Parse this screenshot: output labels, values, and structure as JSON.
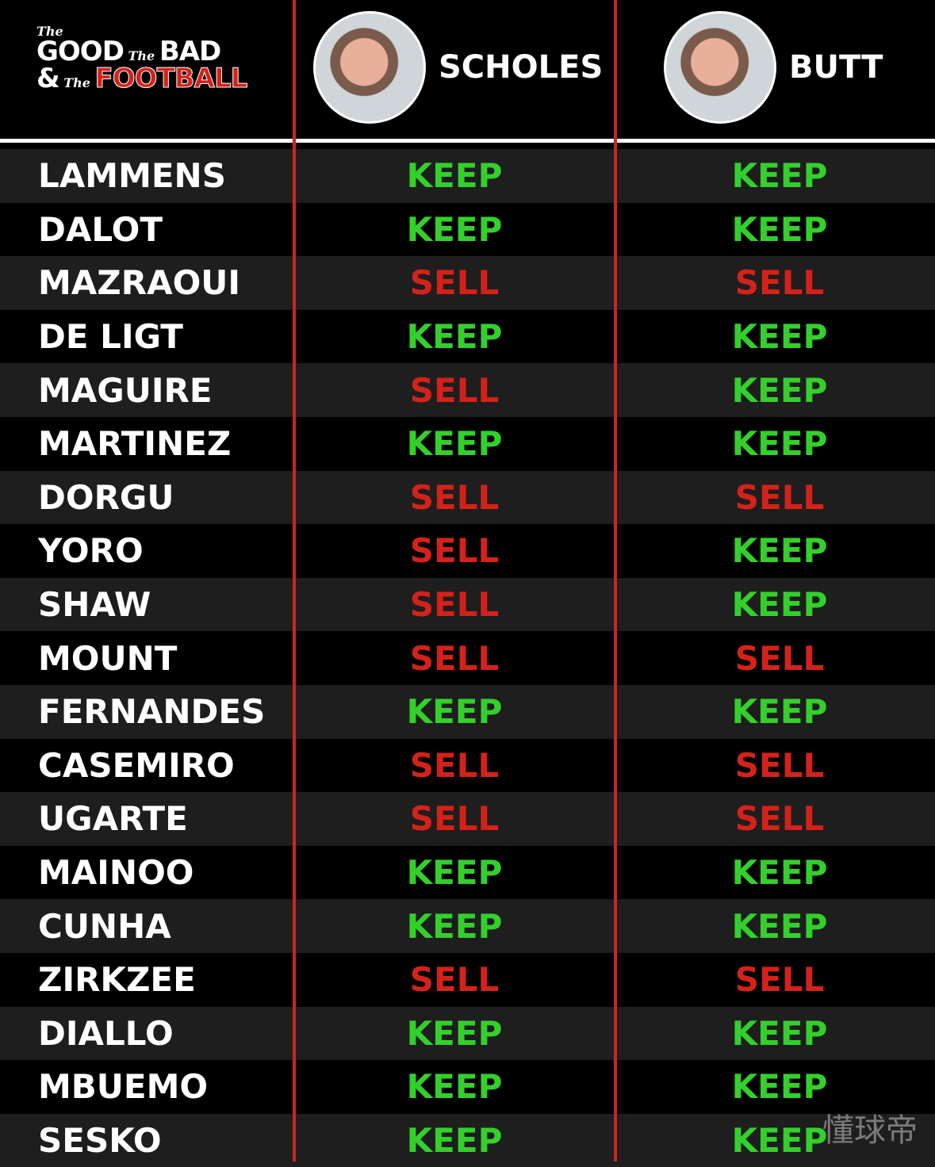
{
  "logo": {
    "the1": "The",
    "good": "GOOD",
    "the2": "The",
    "bad": "BAD",
    "amp": "&",
    "the3": "The",
    "football": "FOOTBALL"
  },
  "pundits": [
    {
      "name": "SCHOLES"
    },
    {
      "name": "BUTT"
    }
  ],
  "colors": {
    "keep": "#33d02c",
    "sell": "#d4221a",
    "divider": "#c8281e"
  },
  "rows": [
    {
      "player": "LAMMENS",
      "scholes": "KEEP",
      "butt": "KEEP"
    },
    {
      "player": "DALOT",
      "scholes": "KEEP",
      "butt": "KEEP"
    },
    {
      "player": "MAZRAOUI",
      "scholes": "SELL",
      "butt": "SELL"
    },
    {
      "player": "DE LIGT",
      "scholes": "KEEP",
      "butt": "KEEP"
    },
    {
      "player": "MAGUIRE",
      "scholes": "SELL",
      "butt": "KEEP"
    },
    {
      "player": "MARTINEZ",
      "scholes": "KEEP",
      "butt": "KEEP"
    },
    {
      "player": "DORGU",
      "scholes": "SELL",
      "butt": "SELL"
    },
    {
      "player": "YORO",
      "scholes": "SELL",
      "butt": "KEEP"
    },
    {
      "player": "SHAW",
      "scholes": "SELL",
      "butt": "KEEP"
    },
    {
      "player": "MOUNT",
      "scholes": "SELL",
      "butt": "SELL"
    },
    {
      "player": "FERNANDES",
      "scholes": "KEEP",
      "butt": "KEEP"
    },
    {
      "player": "CASEMIRO",
      "scholes": "SELL",
      "butt": "SELL"
    },
    {
      "player": "UGARTE",
      "scholes": "SELL",
      "butt": "SELL"
    },
    {
      "player": "MAINOO",
      "scholes": "KEEP",
      "butt": "KEEP"
    },
    {
      "player": "CUNHA",
      "scholes": "KEEP",
      "butt": "KEEP"
    },
    {
      "player": "ZIRKZEE",
      "scholes": "SELL",
      "butt": "SELL"
    },
    {
      "player": "DIALLO",
      "scholes": "KEEP",
      "butt": "KEEP"
    },
    {
      "player": "MBUEMO",
      "scholes": "KEEP",
      "butt": "KEEP"
    },
    {
      "player": "SESKO",
      "scholes": "KEEP",
      "butt": "KEEP"
    }
  ],
  "watermark": "懂球帝"
}
